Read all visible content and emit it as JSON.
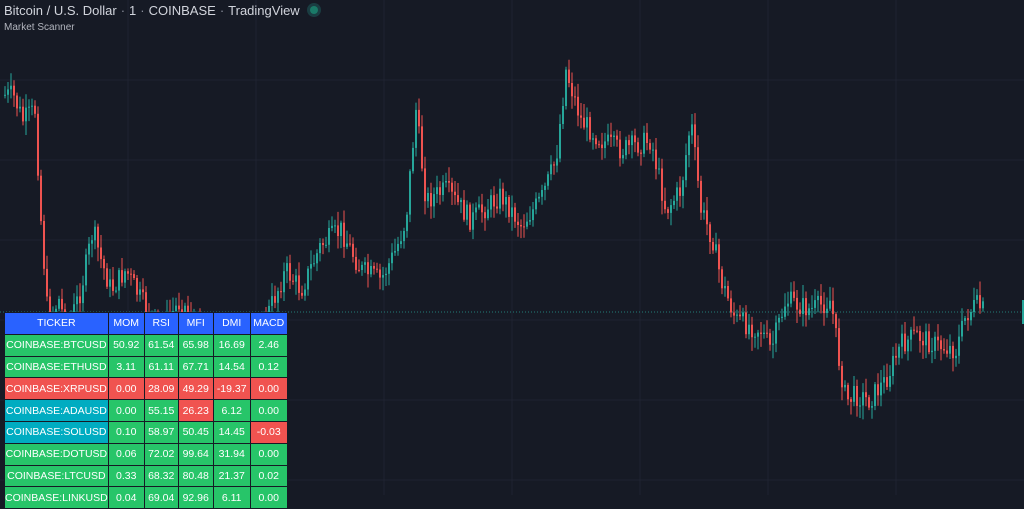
{
  "header": {
    "symbol": "Bitcoin / U.S. Dollar",
    "interval": "1",
    "exchange": "COINBASE",
    "platform": "TradingView",
    "separator": "·"
  },
  "indicator": {
    "name": "Market Scanner"
  },
  "colors": {
    "background": "#161a25",
    "up": "#26a69a",
    "down": "#ef5350",
    "header_blue": "#2962ff",
    "cell_green": "#27c569",
    "cell_red": "#f05350",
    "cell_cyan": "#00acc1"
  },
  "scanner": {
    "columns": [
      "TICKER",
      "MOM",
      "RSI",
      "MFI",
      "DMI",
      "MACD"
    ],
    "rows": [
      {
        "ticker": "COINBASE:BTCUSD",
        "cells": [
          "50.92",
          "61.54",
          "65.98",
          "16.69",
          "2.46"
        ],
        "ticker_color": "green",
        "colors": [
          "green",
          "green",
          "green",
          "green",
          "green"
        ]
      },
      {
        "ticker": "COINBASE:ETHUSD",
        "cells": [
          "3.11",
          "61.11",
          "67.71",
          "14.54",
          "0.12"
        ],
        "ticker_color": "green",
        "colors": [
          "green",
          "green",
          "green",
          "green",
          "green"
        ]
      },
      {
        "ticker": "COINBASE:XRPUSD",
        "cells": [
          "0.00",
          "28.09",
          "49.29",
          "-19.37",
          "0.00"
        ],
        "ticker_color": "red",
        "colors": [
          "red",
          "red",
          "red",
          "red",
          "red"
        ]
      },
      {
        "ticker": "COINBASE:ADAUSD",
        "cells": [
          "0.00",
          "55.15",
          "26.23",
          "6.12",
          "0.00"
        ],
        "ticker_color": "cyan",
        "colors": [
          "green",
          "green",
          "red",
          "green",
          "green"
        ]
      },
      {
        "ticker": "COINBASE:SOLUSD",
        "cells": [
          "0.10",
          "58.97",
          "50.45",
          "14.45",
          "-0.03"
        ],
        "ticker_color": "cyan",
        "colors": [
          "green",
          "green",
          "green",
          "green",
          "red"
        ]
      },
      {
        "ticker": "COINBASE:DOTUSD",
        "cells": [
          "0.06",
          "72.02",
          "99.64",
          "31.94",
          "0.00"
        ],
        "ticker_color": "green",
        "colors": [
          "green",
          "green",
          "green",
          "green",
          "green"
        ]
      },
      {
        "ticker": "COINBASE:LTCUSD",
        "cells": [
          "0.33",
          "68.32",
          "80.48",
          "21.37",
          "0.02"
        ],
        "ticker_color": "green",
        "colors": [
          "green",
          "green",
          "green",
          "green",
          "green"
        ]
      },
      {
        "ticker": "COINBASE:LINKUSD",
        "cells": [
          "0.04",
          "69.04",
          "92.96",
          "6.11",
          "0.00"
        ],
        "ticker_color": "green",
        "colors": [
          "green",
          "green",
          "green",
          "green",
          "green"
        ]
      }
    ]
  }
}
